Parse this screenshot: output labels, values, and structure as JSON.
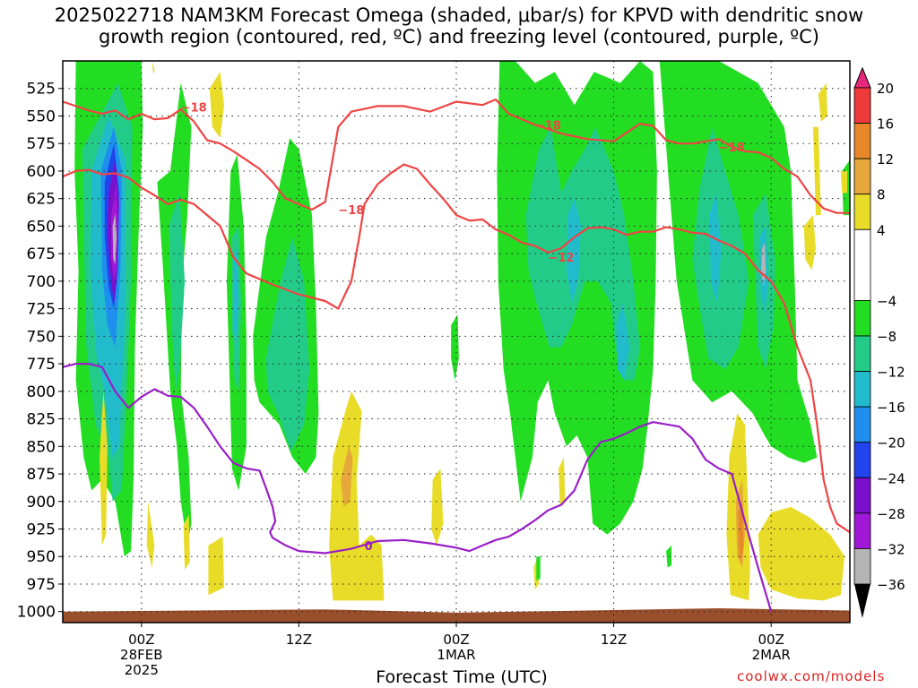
{
  "title_lines": [
    "2025022718 NAM3KM Forecast Omega (shaded, μbar/s) for KPVD with dendritic snow",
    "growth region (contoured, red, ºC) and freezing level (contoured, purple, ºC)"
  ],
  "credit": "coolwx.com/models",
  "colors": {
    "dgz_line": "#ee4444",
    "freezing_line": "#9a1ec8",
    "terrain": "#9a4f2c",
    "omega_light_green": "#22dd22",
    "omega_mid": "#22cc88",
    "omega_cyan": "#22bbcc",
    "omega_blue": "#1f8fee",
    "omega_dark_blue": "#2244ee",
    "omega_violet": "#7a10cc",
    "omega_purple": "#a018d6",
    "omega_gray": "#b4b4b4",
    "omega_yellow": "#e8dc28",
    "omega_gold": "#e6a83a",
    "omega_orange": "#e8882a"
  },
  "chart_data": {
    "type": "heatmap",
    "xlabel": "Forecast Time (UTC)",
    "ylabel": "",
    "x_ticks": [
      {
        "hour": 6,
        "lines": [
          "00Z",
          "28FEB",
          "2025"
        ]
      },
      {
        "hour": 18,
        "lines": [
          "12Z"
        ]
      },
      {
        "hour": 30,
        "lines": [
          "00Z",
          "1MAR"
        ]
      },
      {
        "hour": 42,
        "lines": [
          "12Z"
        ]
      },
      {
        "hour": 54,
        "lines": [
          "00Z",
          "2MAR"
        ]
      }
    ],
    "xlim_hours": [
      0,
      60
    ],
    "y_ticks": [
      "525",
      "550",
      "575",
      "600",
      "625",
      "650",
      "675",
      "700",
      "725",
      "750",
      "775",
      "800",
      "825",
      "850",
      "875",
      "900",
      "925",
      "950",
      "975",
      "1000"
    ],
    "ylim_hPa": [
      500,
      1010
    ],
    "colorbar": {
      "labels": [
        "20",
        "16",
        "12",
        "8",
        "4",
        "−4",
        "−8",
        "−12",
        "−16",
        "−20",
        "−24",
        "−28",
        "−32",
        "−36"
      ],
      "segments": [
        {
          "from": 16,
          "to": 20,
          "color": "#ee3a3a"
        },
        {
          "from": 12,
          "to": 16,
          "color": "#e8882a"
        },
        {
          "from": 8,
          "to": 12,
          "color": "#e6a83a"
        },
        {
          "from": 4,
          "to": 8,
          "color": "#e8dc28"
        },
        {
          "from": -4,
          "to": 4,
          "color": "#ffffff"
        },
        {
          "from": -8,
          "to": -4,
          "color": "#22dd22"
        },
        {
          "from": -12,
          "to": -8,
          "color": "#22cc88"
        },
        {
          "from": -16,
          "to": -12,
          "color": "#22bbcc"
        },
        {
          "from": -20,
          "to": -16,
          "color": "#1f8fee"
        },
        {
          "from": -24,
          "to": -20,
          "color": "#2244ee"
        },
        {
          "from": -28,
          "to": -24,
          "color": "#7a10cc"
        },
        {
          "from": -32,
          "to": -28,
          "color": "#a018d6"
        },
        {
          "from": -36,
          "to": -32,
          "color": "#b4b4b4"
        }
      ]
    },
    "dgz_top_minus18": {
      "label": "−18",
      "points": [
        [
          0,
          537
        ],
        [
          2,
          545
        ],
        [
          3,
          548
        ],
        [
          4,
          545
        ],
        [
          5,
          553
        ],
        [
          6,
          548
        ],
        [
          7,
          553
        ],
        [
          8,
          552
        ],
        [
          9,
          544
        ],
        [
          10,
          555
        ],
        [
          11,
          572
        ],
        [
          12,
          575
        ],
        [
          13,
          582
        ],
        [
          14,
          590
        ],
        [
          15,
          598
        ],
        [
          16,
          610
        ],
        [
          17,
          625
        ],
        [
          18,
          630
        ],
        [
          19,
          635
        ],
        [
          20,
          628
        ],
        [
          21,
          560
        ],
        [
          22,
          546
        ],
        [
          24,
          541
        ],
        [
          26,
          541
        ],
        [
          28,
          546
        ],
        [
          30,
          537
        ],
        [
          32,
          540
        ],
        [
          33,
          535
        ],
        [
          34,
          548
        ],
        [
          36,
          558
        ],
        [
          38,
          566
        ],
        [
          40,
          571
        ],
        [
          42,
          573
        ],
        [
          43,
          565
        ],
        [
          44,
          557
        ],
        [
          45,
          559
        ],
        [
          46,
          572
        ],
        [
          47,
          575
        ],
        [
          48,
          575
        ],
        [
          50,
          571
        ],
        [
          51,
          578
        ],
        [
          52,
          582
        ],
        [
          53,
          583
        ],
        [
          54,
          588
        ],
        [
          55,
          598
        ],
        [
          56,
          605
        ],
        [
          57,
          622
        ],
        [
          58,
          634
        ],
        [
          59,
          638
        ],
        [
          60,
          638
        ]
      ],
      "label_at": [
        [
          9,
          542
        ],
        [
          21,
          635
        ],
        [
          36,
          558
        ],
        [
          50,
          578
        ]
      ]
    },
    "dgz_bottom_minus12": {
      "label": "−12",
      "points": [
        [
          0,
          605
        ],
        [
          1,
          600
        ],
        [
          2,
          599
        ],
        [
          3,
          603
        ],
        [
          4,
          602
        ],
        [
          5,
          606
        ],
        [
          6,
          615
        ],
        [
          7,
          622
        ],
        [
          8,
          630
        ],
        [
          9,
          626
        ],
        [
          10,
          630
        ],
        [
          11,
          640
        ],
        [
          12,
          650
        ],
        [
          13,
          678
        ],
        [
          14,
          693
        ],
        [
          16,
          703
        ],
        [
          18,
          712
        ],
        [
          20,
          718
        ],
        [
          21,
          725
        ],
        [
          22,
          700
        ],
        [
          22.6,
          660
        ],
        [
          23,
          630
        ],
        [
          24,
          612
        ],
        [
          25,
          602
        ],
        [
          26,
          594
        ],
        [
          27,
          598
        ],
        [
          28,
          612
        ],
        [
          29,
          625
        ],
        [
          30,
          640
        ],
        [
          31,
          645
        ],
        [
          32,
          644
        ],
        [
          33,
          653
        ],
        [
          34,
          658
        ],
        [
          35,
          665
        ],
        [
          36,
          668
        ],
        [
          37,
          674
        ],
        [
          38,
          670
        ],
        [
          39,
          660
        ],
        [
          40,
          652
        ],
        [
          41,
          651
        ],
        [
          42,
          653
        ],
        [
          43,
          658
        ],
        [
          44,
          655
        ],
        [
          45,
          655
        ],
        [
          46,
          651
        ],
        [
          47,
          653
        ],
        [
          48,
          656
        ],
        [
          49,
          657
        ],
        [
          50,
          663
        ],
        [
          51,
          668
        ],
        [
          52,
          675
        ],
        [
          53,
          690
        ],
        [
          54,
          700
        ],
        [
          55,
          720
        ],
        [
          56,
          760
        ],
        [
          57,
          790
        ],
        [
          57.5,
          830
        ],
        [
          58,
          880
        ],
        [
          58.5,
          905
        ],
        [
          59,
          920
        ],
        [
          60,
          928
        ]
      ],
      "label_at": [
        [
          37,
          678
        ]
      ]
    },
    "freezing_level_0C": {
      "label": "0",
      "points": [
        [
          0,
          778
        ],
        [
          1,
          775
        ],
        [
          2,
          775
        ],
        [
          3,
          778
        ],
        [
          4,
          800
        ],
        [
          5,
          815
        ],
        [
          6,
          805
        ],
        [
          7,
          798
        ],
        [
          8,
          804
        ],
        [
          9,
          805
        ],
        [
          10,
          815
        ],
        [
          11,
          832
        ],
        [
          12,
          850
        ],
        [
          13,
          865
        ],
        [
          14,
          870
        ],
        [
          15,
          872
        ],
        [
          15.5,
          888
        ],
        [
          16,
          905
        ],
        [
          16.2,
          918
        ],
        [
          15.8,
          928
        ],
        [
          16,
          933
        ],
        [
          17,
          940
        ],
        [
          18,
          945
        ],
        [
          20,
          947
        ],
        [
          22,
          943
        ],
        [
          24,
          936
        ],
        [
          26,
          935
        ],
        [
          28,
          938
        ],
        [
          30,
          942
        ],
        [
          31,
          945
        ],
        [
          32,
          940
        ],
        [
          33,
          935
        ],
        [
          34,
          932
        ],
        [
          35,
          925
        ],
        [
          36,
          917
        ],
        [
          37,
          908
        ],
        [
          38,
          903
        ],
        [
          39,
          890
        ],
        [
          40,
          862
        ],
        [
          41,
          846
        ],
        [
          42,
          843
        ],
        [
          43,
          838
        ],
        [
          44,
          832
        ],
        [
          45,
          828
        ],
        [
          46,
          830
        ],
        [
          47,
          832
        ],
        [
          48,
          843
        ],
        [
          49,
          862
        ],
        [
          50,
          870
        ],
        [
          51,
          875
        ],
        [
          52,
          918
        ],
        [
          53,
          960
        ],
        [
          54,
          1000
        ]
      ],
      "label_at": [
        [
          23,
          940
        ]
      ]
    }
  }
}
